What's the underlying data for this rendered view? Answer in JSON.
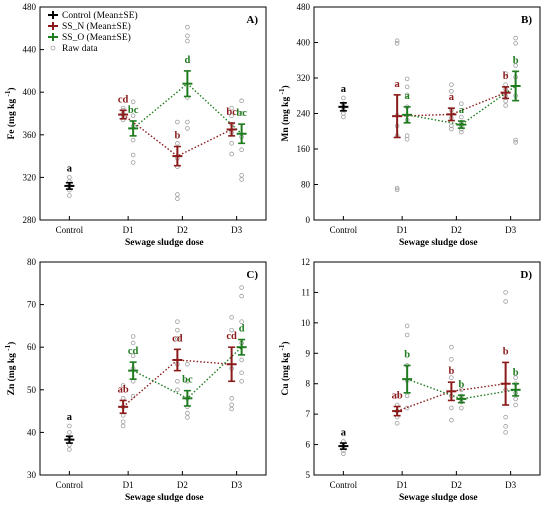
{
  "colors": {
    "control": "#000000",
    "ss_n": "#8b1a1a",
    "ss_o": "#1e7b1e",
    "raw": "#a0a0a0"
  },
  "legend": {
    "control": "Control (Mean±SE)",
    "ss_n": "SS_N  (Mean±SE)",
    "ss_o": "SS_O  (Mean±SE)",
    "raw": "Raw data"
  },
  "chart_data": [
    {
      "type": "scatter",
      "panel": "A)",
      "ylabel_main": "Fe",
      "ylabel_unit": "(mg kg",
      "ylabel_sup": "-1",
      "ylabel_close": ")",
      "xlabel": "Sewage sludge dose",
      "categories": [
        "Control",
        "D1",
        "D2",
        "D3"
      ],
      "yticks": [
        280,
        320,
        360,
        400,
        440,
        480
      ],
      "ylim": [
        280,
        480
      ],
      "control": {
        "mean": 312,
        "se": 3,
        "letter": "a",
        "raw": [
          303,
          308,
          312,
          316,
          320
        ]
      },
      "series": [
        {
          "name": "SS_N",
          "x": [
            1,
            2,
            3
          ],
          "means": [
            379,
            340,
            365
          ],
          "se": [
            4,
            9,
            6
          ],
          "letters": [
            "cd",
            "b",
            "bc"
          ],
          "raw": [
            [
              374,
              377,
              380,
              383,
              385
            ],
            [
              300,
              304,
              330,
              338,
              352,
              372
            ],
            [
              342,
              352,
              362,
              370,
              378,
              385
            ]
          ]
        },
        {
          "name": "SS_O",
          "x": [
            1,
            2,
            3
          ],
          "means": [
            366,
            408,
            361
          ],
          "se": [
            7,
            12,
            9
          ],
          "letters": [
            "bc",
            "d",
            "bc"
          ],
          "raw": [
            [
              334,
              341,
              355,
              368,
              378,
              391
            ],
            [
              366,
              372,
              395,
              448,
              453,
              461
            ],
            [
              318,
              322,
              346,
              358,
              380,
              392
            ]
          ]
        }
      ]
    },
    {
      "type": "scatter",
      "panel": "B)",
      "ylabel_main": "Mn",
      "ylabel_unit": "(mg kg",
      "ylabel_sup": "-1",
      "ylabel_close": ")",
      "xlabel": "Sewage sludge dose",
      "categories": [
        "Control",
        "D1",
        "D2",
        "D3"
      ],
      "yticks": [
        0,
        80,
        160,
        240,
        320,
        400,
        480
      ],
      "ylim": [
        0,
        480
      ],
      "control": {
        "mean": 255,
        "se": 9,
        "letter": "a",
        "raw": [
          232,
          240,
          248,
          255,
          262,
          275
        ]
      },
      "series": [
        {
          "name": "SS_N",
          "x": [
            1,
            2,
            3
          ],
          "means": [
            234,
            238,
            287
          ],
          "se": [
            48,
            14,
            13
          ],
          "letters": [
            "a",
            "a",
            "b"
          ],
          "raw": [
            [
              68,
              72,
              190,
              212,
              236,
              398,
              404
            ],
            [
              205,
              212,
              230,
              248,
              290,
              305
            ],
            [
              258,
              268,
              280,
              295,
              305,
              330
            ]
          ]
        },
        {
          "name": "SS_O",
          "x": [
            1,
            2,
            3
          ],
          "means": [
            237,
            215,
            302
          ],
          "se": [
            18,
            8,
            33
          ],
          "letters": [
            "a",
            "a",
            "b"
          ],
          "raw": [
            [
              182,
              190,
              225,
              255,
              282,
              300,
              318
            ],
            [
              198,
              205,
              212,
              220,
              232,
              262
            ],
            [
              175,
              180,
              280,
              322,
              348,
              398,
              410
            ]
          ]
        }
      ]
    },
    {
      "type": "scatter",
      "panel": "C)",
      "ylabel_main": "Zn",
      "ylabel_unit": "(mg kg",
      "ylabel_sup": "-1",
      "ylabel_close": ")",
      "xlabel": "Sewage sludge dose",
      "categories": [
        "Control",
        "D1",
        "D2",
        "D3"
      ],
      "yticks": [
        30,
        40,
        50,
        60,
        70,
        80
      ],
      "ylim": [
        30,
        80
      ],
      "control": {
        "mean": 38.3,
        "se": 0.8,
        "letter": "a",
        "raw": [
          36,
          37,
          38.5,
          40,
          41.5
        ]
      },
      "series": [
        {
          "name": "SS_N",
          "x": [
            1,
            2,
            3
          ],
          "means": [
            46,
            57,
            56
          ],
          "se": [
            1.5,
            2.5,
            4
          ],
          "letters": [
            "ab",
            "cd",
            "cd"
          ],
          "raw": [
            [
              41.5,
              42.5,
              44,
              46,
              48,
              51
            ],
            [
              50,
              52,
              56,
              62,
              64,
              66
            ],
            [
              45.5,
              46.5,
              48,
              55,
              64,
              67
            ]
          ]
        },
        {
          "name": "SS_O",
          "x": [
            1,
            2,
            3
          ],
          "means": [
            54.5,
            48,
            60
          ],
          "se": [
            2,
            1.8,
            1.8
          ],
          "letters": [
            "cd",
            "bc",
            "d"
          ],
          "raw": [
            [
              48.5,
              52,
              55,
              58,
              61,
              62.5
            ],
            [
              43.5,
              44.5,
              46,
              48,
              52,
              56
            ],
            [
              52,
              54,
              57,
              61,
              66,
              72,
              74
            ]
          ]
        }
      ]
    },
    {
      "type": "scatter",
      "panel": "D)",
      "ylabel_main": "Cu",
      "ylabel_unit": "(mg kg",
      "ylabel_sup": "-1",
      "ylabel_close": ")",
      "xlabel": "Sewage sludge dose",
      "categories": [
        "Control",
        "D1",
        "D2",
        "D3"
      ],
      "yticks": [
        5,
        6,
        7,
        8,
        9,
        10,
        11,
        12
      ],
      "ylim": [
        5,
        12
      ],
      "control": {
        "mean": 5.95,
        "se": 0.1,
        "letter": "a",
        "raw": [
          5.7,
          5.8,
          5.95,
          6.1
        ]
      },
      "series": [
        {
          "name": "SS_N",
          "x": [
            1,
            2,
            3
          ],
          "means": [
            7.1,
            7.75,
            8.0
          ],
          "se": [
            0.15,
            0.3,
            0.7
          ],
          "letters": [
            "ab",
            "b",
            "b"
          ],
          "raw": [
            [
              6.7,
              6.9,
              7.1,
              7.3,
              7.6
            ],
            [
              6.8,
              7.2,
              7.6,
              8.2,
              8.8,
              9.2
            ],
            [
              6.4,
              6.6,
              6.9,
              7.8,
              10.7,
              11.0
            ]
          ]
        },
        {
          "name": "SS_O",
          "x": [
            1,
            2,
            3
          ],
          "means": [
            8.15,
            7.5,
            7.8
          ],
          "se": [
            0.45,
            0.12,
            0.2
          ],
          "letters": [
            "b",
            "b",
            "b"
          ],
          "raw": [
            [
              7.2,
              7.6,
              8.1,
              8.6,
              9.6,
              9.9
            ],
            [
              7.2,
              7.4,
              7.5,
              7.6,
              7.8
            ],
            [
              7.3,
              7.5,
              7.7,
              8.0,
              8.2
            ]
          ]
        }
      ]
    }
  ]
}
